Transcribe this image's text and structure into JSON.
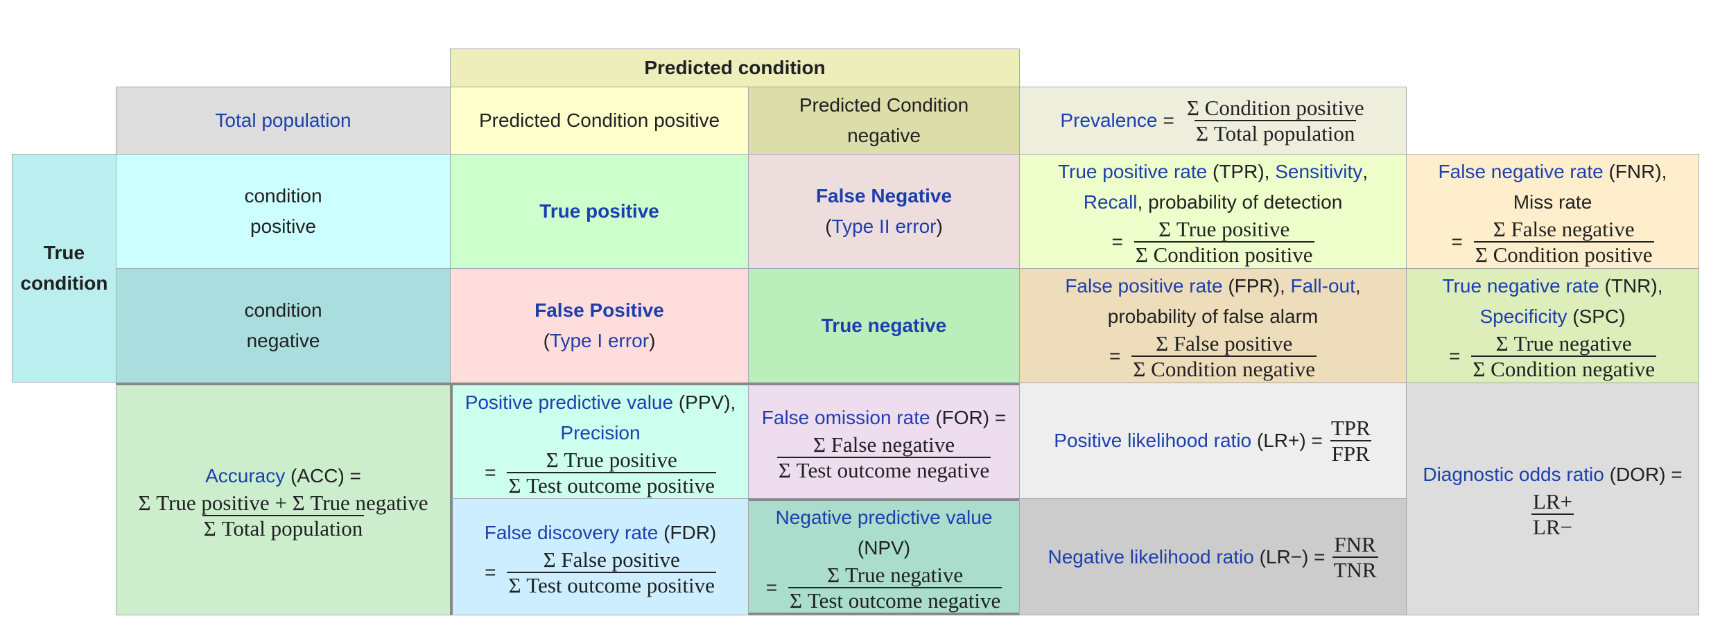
{
  "header": {
    "predicted_condition": "Predicted condition"
  },
  "cells": {
    "total_population": "Total population",
    "pred_pos": "Predicted Condition positive",
    "pred_neg_1": "Predicted Condition",
    "pred_neg_2": "negative",
    "prevalence": {
      "name": "Prevalence",
      "num": "Σ Condition positive",
      "den": "Σ Total population"
    },
    "true_condition_1": "True",
    "true_condition_2": "condition",
    "cond_pos_1": "condition",
    "cond_pos_2": "positive",
    "cond_neg_1": "condition",
    "cond_neg_2": "negative",
    "true_positive": "True positive",
    "false_negative": "False Negative",
    "type2": "Type II error",
    "false_positive": "False Positive",
    "type1": "Type I error",
    "true_negative": "True negative",
    "tpr": {
      "name": "True positive rate",
      "abbr": "(TPR),",
      "alt1": "Sensitivity",
      "alt2": "Recall",
      "rest": ", probability of detection",
      "num": "Σ True positive",
      "den": "Σ Condition positive"
    },
    "fnr": {
      "name": "False negative rate",
      "abbr": "(FNR),",
      "alt": "Miss rate",
      "num": "Σ False negative",
      "den": "Σ Condition positive"
    },
    "fpr": {
      "name": "False positive rate",
      "abbr": "(FPR),",
      "alt": "Fall-out",
      "rest": "probability of false alarm",
      "num": "Σ False positive",
      "den": "Σ Condition negative"
    },
    "tnr": {
      "name": "True negative rate",
      "abbr": "(TNR),",
      "alt": "Specificity",
      "alt_abbr": "(SPC)",
      "num": "Σ True negative",
      "den": "Σ Condition negative"
    },
    "acc": {
      "name": "Accuracy",
      "abbr": "(ACC) =",
      "num": "Σ True positive + Σ True negative",
      "den": "Σ Total population"
    },
    "ppv": {
      "name": "Positive predictive value",
      "abbr": "(PPV),",
      "alt": "Precision",
      "num": "Σ True positive",
      "den": "Σ Test outcome positive"
    },
    "for": {
      "name": "False omission rate",
      "abbr": "(FOR) =",
      "num": "Σ False negative",
      "den": "Σ Test outcome negative"
    },
    "lrp": {
      "name": "Positive likelihood ratio",
      "abbr": "(LR+) =",
      "num": "TPR",
      "den": "FPR"
    },
    "dor": {
      "name": "Diagnostic odds ratio",
      "abbr": "(DOR) =",
      "num": "LR+",
      "den": "LR−"
    },
    "fdr": {
      "name": "False discovery rate",
      "abbr": "(FDR)",
      "num": "Σ False positive",
      "den": "Σ Test outcome positive"
    },
    "npv": {
      "name": "Negative predictive value",
      "abbr": "(NPV)",
      "num": "Σ True negative",
      "den": "Σ Test outcome negative"
    },
    "lrn": {
      "name": "Negative likelihood ratio",
      "abbr": "(LR−) =",
      "num": "FNR",
      "den": "TNR"
    },
    "eq": "=",
    "paren_open": "(",
    "paren_close": ")"
  },
  "colors": {
    "predicted_header": "#eeeebb",
    "total_pop": "#dddddd",
    "pred_pos": "#ffffcc",
    "pred_neg": "#ddddaa",
    "prevalence": "#eeeedd",
    "true_cond": "#bbeeee",
    "cond_pos": "#ccffff",
    "cond_neg": "#aadddd",
    "tp": "#ccffcc",
    "fn": "#eedddd",
    "fp": "#ffdddd",
    "tn": "#bbeebb",
    "tpr": "#eeffcc",
    "fnr": "#ffeecc",
    "fpr": "#eeddbb",
    "tnr": "#ddeebb",
    "acc": "#cceecc",
    "ppv": "#ccffee",
    "for": "#eeddee",
    "lrp": "#eeeeee",
    "dor": "#dddddd",
    "fdr": "#cceeff",
    "npv": "#aaddcc",
    "lrn": "#cccccc"
  }
}
